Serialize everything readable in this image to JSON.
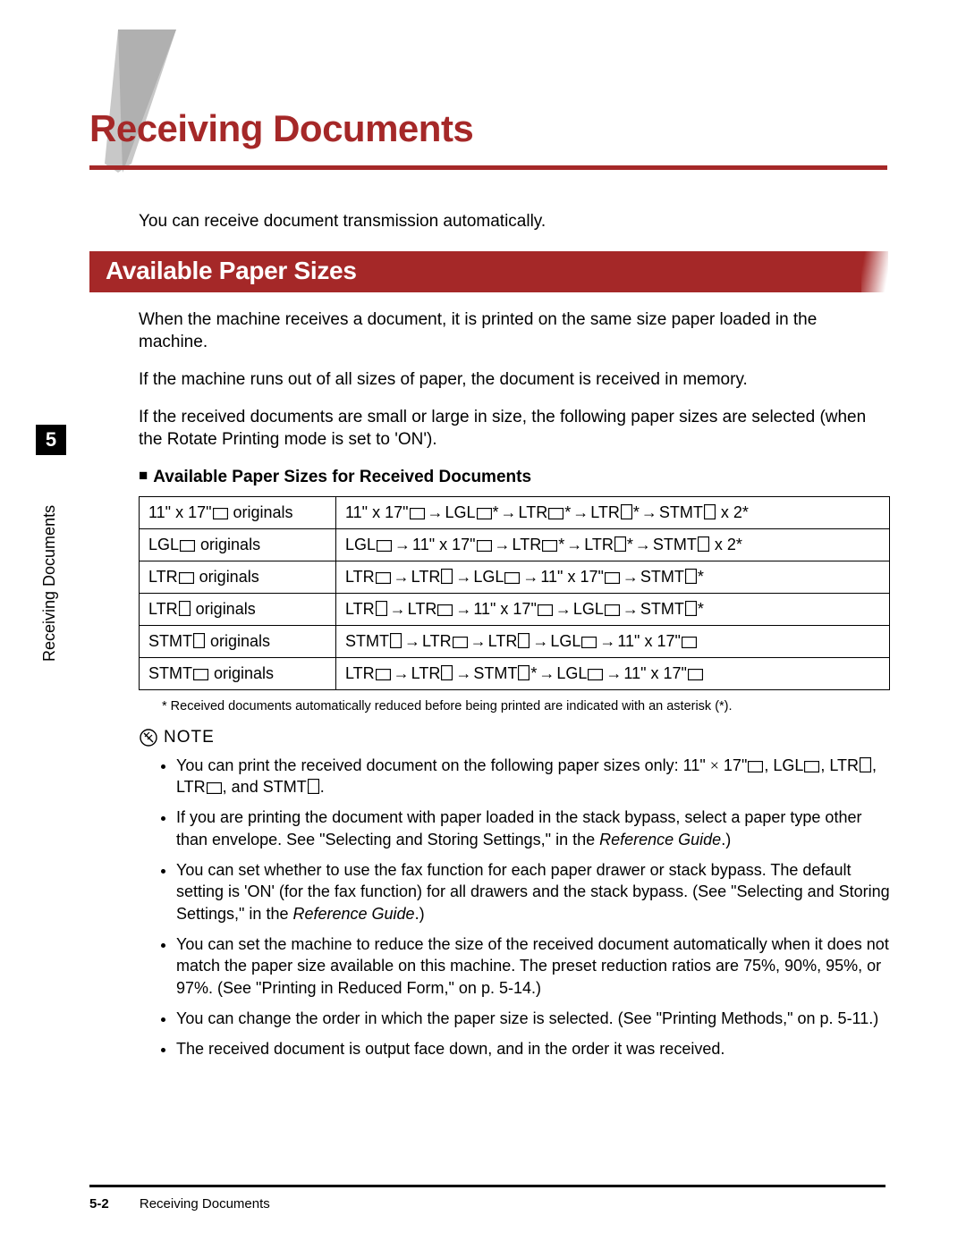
{
  "chapter_num": "5",
  "side_label": "Receiving Documents",
  "title": "Receiving Documents",
  "colors": {
    "accent": "#a52828",
    "text": "#000000",
    "bg": "#ffffff"
  },
  "intro": "You can receive document transmission automatically.",
  "section_title": "Available Paper Sizes",
  "para1": "When the machine receives a document, it is printed on the same size paper loaded in the machine.",
  "para2": "If the machine runs out of all sizes of paper, the document is received in memory.",
  "para3": "If the received documents are small or large in size, the following paper sizes are selected (when the Rotate Printing mode is set to 'ON').",
  "table_subhead": "Available Paper Sizes for Received Documents",
  "table_rows": [
    {
      "orig_label": "11\" x 17\"",
      "orig_orient": "L",
      "chain": [
        {
          "label": "11\" x 17\"",
          "orient": "L",
          "star": false
        },
        {
          "label": "LGL",
          "orient": "L",
          "star": true
        },
        {
          "label": "LTR",
          "orient": "L",
          "star": true
        },
        {
          "label": "LTR",
          "orient": "P",
          "star": true
        },
        {
          "label": "STMT",
          "orient": "P",
          "star": false,
          "suffix": " x 2*"
        }
      ]
    },
    {
      "orig_label": "LGL",
      "orig_orient": "L",
      "chain": [
        {
          "label": "LGL",
          "orient": "L",
          "star": false
        },
        {
          "label": "11\" x 17\"",
          "orient": "L",
          "star": false
        },
        {
          "label": "LTR",
          "orient": "L",
          "star": true
        },
        {
          "label": "LTR",
          "orient": "P",
          "star": true
        },
        {
          "label": "STMT",
          "orient": "P",
          "star": false,
          "suffix": " x 2*"
        }
      ]
    },
    {
      "orig_label": "LTR",
      "orig_orient": "L",
      "chain": [
        {
          "label": "LTR",
          "orient": "L",
          "star": false
        },
        {
          "label": "LTR",
          "orient": "P",
          "star": false
        },
        {
          "label": "LGL",
          "orient": "L",
          "star": false
        },
        {
          "label": "11\" x 17\"",
          "orient": "L",
          "star": false
        },
        {
          "label": "STMT",
          "orient": "P",
          "star": true
        }
      ]
    },
    {
      "orig_label": "LTR",
      "orig_orient": "P",
      "chain": [
        {
          "label": "LTR",
          "orient": "P",
          "star": false
        },
        {
          "label": "LTR",
          "orient": "L",
          "star": false
        },
        {
          "label": "11\" x 17\"",
          "orient": "L",
          "star": false
        },
        {
          "label": "LGL",
          "orient": "L",
          "star": false
        },
        {
          "label": "STMT",
          "orient": "P",
          "star": true
        }
      ]
    },
    {
      "orig_label": "STMT",
      "orig_orient": "P",
      "chain": [
        {
          "label": "STMT",
          "orient": "P",
          "star": false
        },
        {
          "label": "LTR",
          "orient": "L",
          "star": false
        },
        {
          "label": "LTR",
          "orient": "P",
          "star": false
        },
        {
          "label": "LGL",
          "orient": "L",
          "star": false
        },
        {
          "label": "11\" x 17\"",
          "orient": "L",
          "star": false
        }
      ]
    },
    {
      "orig_label": "STMT",
      "orig_orient": "L",
      "chain": [
        {
          "label": "LTR",
          "orient": "L",
          "star": false
        },
        {
          "label": "LTR",
          "orient": "P",
          "star": false
        },
        {
          "label": "STMT",
          "orient": "P",
          "star": true
        },
        {
          "label": "LGL",
          "orient": "L",
          "star": false
        },
        {
          "label": "11\" x 17\"",
          "orient": "L",
          "star": false
        }
      ]
    }
  ],
  "footnote": "* Received documents automatically reduced before being printed are indicated with an asterisk (*).",
  "note_label": "NOTE",
  "notes": [
    {
      "pre": "You can print the received document on the following paper sizes only: 11\" ",
      "mid": "×",
      "post": " 17\"",
      "tail_items": [
        "LGL-L",
        "LTR-P",
        "LTR-L",
        "STMT-P"
      ],
      "tail_suffix": "."
    },
    {
      "text": "If you are printing the document with paper loaded in the stack bypass, select a paper type other than envelope. See \"Selecting and Storing Settings,\" in the ",
      "em": "Reference Guide",
      "post": ".)"
    },
    {
      "text": "You can set whether to use the fax function for each paper drawer or stack bypass. The default setting is 'ON' (for the fax function) for all drawers and the stack bypass. (See \"Selecting and Storing Settings,\" in the ",
      "em": "Reference Guide",
      "post": ".)"
    },
    {
      "text": "You can set the machine to reduce the size of the received document automatically when it does not match the paper size available on this machine. The preset reduction ratios are 75%, 90%, 95%, or 97%. (See \"Printing in Reduced Form,\" on p. 5-14.)"
    },
    {
      "text": "You can change the order in which the paper size is selected. (See \"Printing Methods,\" on p. 5-11.)"
    },
    {
      "text": "The received document is output face down, and in the order it was received."
    }
  ],
  "footer_page": "5-2",
  "footer_text": "Receiving Documents"
}
